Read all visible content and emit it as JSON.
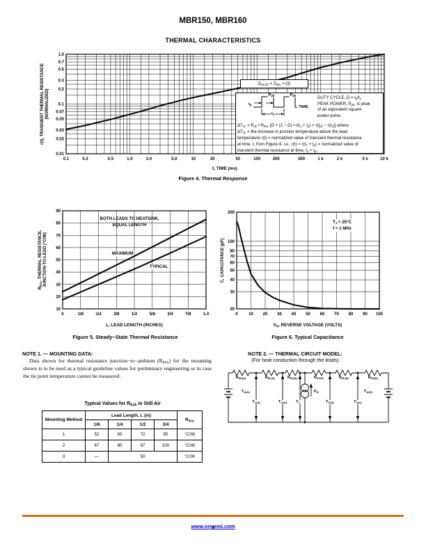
{
  "page": {
    "title": "MBR150, MBR160",
    "subtitle": "THERMAL CHARACTERISTICS",
    "footer": {
      "link": "www.onsemi.com",
      "page_number": "3",
      "rule_color": "#cf6f12"
    }
  },
  "figure4": {
    "caption": "Figure 4. Thermal Response",
    "xlabel": "t, TIME (ms)",
    "ylabel_html": "r(t), TRANSIENT THERMAL RESISTANCE<br>(NORMALIZED)",
    "annotation": {
      "equation_html": "Z<sub>θJL(t)</sub> = Z<sub>θJL</sub> • r(t)",
      "pulse": {
        "ppk_html": "P<sub>pk</sub>",
        "tp_html": "t<sub>p</sub>",
        "t1_html": "t<sub>1</sub>",
        "time": "TIME"
      },
      "duty_html": "DUTY CYCLE, D = t<sub>p</sub>/t<sub>1</sub><br>PEAK POWER, P<sub>pk</sub>, is peak<br>of an equivalent square<br>power pulse.",
      "formula_html": "ΔT<sub>JL</sub> = P<sub>pk</sub> • R<sub>θJL</sub> [D + (1 − D) • r(t<sub>1</sub> + t<sub>p</sub>) + r(t<sub>p</sub>) − r(t<sub>1</sub>)] where<br>ΔT<sub>JL</sub> = the increase in junction temperature above the lead<br>temperature r(t) = normalized value of transient thermal resistance<br>at time, t, from Figure 4, i.e.: r(t) = r(t<sub>1</sub> + t<sub>p</sub>) = normalized value of<br>transient thermal resistance at time, t<sub>1</sub> + t<sub>p</sub>."
    }
  },
  "figure5": {
    "caption": "Figure 5. Steady−State Thermal Resistance",
    "xlabel": "L, LEAD LENGTH (INCHES)",
    "ylabel_html": "R<sub>θJL</sub>, THERMAL RESISTANCE,<br>JUNCTION-TO-LEAD (°C/W)",
    "note_html": "BOTH LEADS TO HEATSINK,<br>EQUAL LENGTH",
    "series_labels": {
      "max": "MAXIMUM",
      "typ": "TYPICAL"
    }
  },
  "figure6": {
    "caption": "Figure 6. Typical Capacitance",
    "xlabel_html": "V<sub>R</sub>, REVERSE VOLTAGE (VOLTS)",
    "ylabel": "C, CAPACITANCE (pF)",
    "conditions_html": "T<sub>J</sub> = 25°C<br>f = 1 MHz"
  },
  "note1": {
    "heading": "NOTE 1. — MOUNTING DATA:",
    "body_html": "Data shown for thermal resistance junction−to−ambient (R<sub>θJA</sub>) for the mounting shown is to be used as a typical guideline values for preliminary engineering or in case the tie point temperature cannot be measured.",
    "table": {
      "title_html": "Typical Values for R<sub>θJA</sub> in Still Air",
      "col1_header": "Mounting Method",
      "span_header": "Lead Length, L (in)",
      "sub_headers": [
        "1/8",
        "1/4",
        "1/2",
        "3/4"
      ],
      "r_header_html": "R<sub>θJA</sub>",
      "rows": [
        {
          "method": "1",
          "values": [
            "52",
            "65",
            "72",
            "85"
          ],
          "unit": "°C/W"
        },
        {
          "method": "2",
          "values": [
            "67",
            "80",
            "87",
            "100"
          ],
          "unit": "°C/W"
        },
        {
          "method": "3",
          "dash": "—",
          "merged": "50",
          "unit": "°C/W"
        }
      ]
    }
  },
  "note2": {
    "heading": "NOTE 2. — THERMAL CIRCUIT MODEL:",
    "subheading": "(For heat conduction through the leads)",
    "resistors_html": [
      "R<sub>θS(A)</sub>",
      "R<sub>θL(A)</sub>",
      "R<sub>θJ(A)</sub>",
      "R<sub>θJ(K)</sub>",
      "R<sub>θL(K)</sub>",
      "R<sub>θS(K)</sub>"
    ],
    "nodes_html": [
      "T<sub>L(A)</sub>",
      "T<sub>C(A)</sub>",
      "T<sub>J</sub>",
      "T<sub>C(K)</sub>",
      "T<sub>L(K)</sub>"
    ],
    "ta_left_html": "T<sub>A(A)</sub>",
    "ta_right_html": "T<sub>A(K)</sub>",
    "pd_html": "P<sub>D</sub>"
  },
  "chart_data": [
    {
      "id": "fig4",
      "type": "line",
      "title": "Figure 4. Thermal Response",
      "xlabel": "t, TIME (ms)",
      "ylabel": "r(t), TRANSIENT THERMAL RESISTANCE (NORMALIZED)",
      "xscale": "log",
      "yscale": "log",
      "xlim": [
        0.1,
        10000
      ],
      "ylim": [
        0.01,
        1.0
      ],
      "grid": "on",
      "legend": "none",
      "xtick_values": [
        0.1,
        0.2,
        0.5,
        1,
        2,
        5,
        10,
        20,
        50,
        100,
        200,
        500,
        1000,
        2000,
        5000,
        10000
      ],
      "xtick_labels": [
        "0.1",
        "0.2",
        "0.5",
        "1.0",
        "2.0",
        "5.0",
        "10",
        "20",
        "50",
        "100",
        "200",
        "500",
        "1 k",
        "2 k",
        "5 k",
        "10 k"
      ],
      "ytick_values": [
        0.01,
        0.02,
        0.03,
        0.05,
        0.07,
        0.1,
        0.2,
        0.3,
        0.5,
        0.7,
        1.0
      ],
      "ytick_labels": [
        "0.01",
        "0.02",
        "0.03",
        "0.05",
        "0.07",
        "0.1",
        "0.2",
        "0.3",
        "0.5",
        "0.7",
        "1.0"
      ],
      "series": [
        {
          "name": "normalized transient thermal resistance",
          "x": [
            0.1,
            0.2,
            0.3,
            0.5,
            0.7,
            1,
            2,
            3,
            5,
            7,
            10,
            20,
            30,
            50,
            100,
            200,
            300,
            500,
            1000,
            2000,
            3000,
            5000,
            7000,
            10000
          ],
          "y": [
            0.031,
            0.037,
            0.042,
            0.049,
            0.055,
            0.062,
            0.079,
            0.093,
            0.109,
            0.122,
            0.135,
            0.162,
            0.18,
            0.207,
            0.248,
            0.3,
            0.34,
            0.417,
            0.543,
            0.672,
            0.75,
            0.86,
            0.93,
            1.0
          ]
        }
      ]
    },
    {
      "id": "fig5",
      "type": "line",
      "title": "Figure 5. Steady-State Thermal Resistance",
      "xlabel": "L, LEAD LENGTH (INCHES)",
      "ylabel": "RθJL, THERMAL RESISTANCE, JUNCTION-TO-LEAD (°C/W)",
      "annotation": "BOTH LEADS TO HEATSINK, EQUAL LENGTH",
      "xscale": "linear",
      "yscale": "linear",
      "xlim": [
        0,
        1
      ],
      "ylim": [
        10,
        90
      ],
      "grid": "on",
      "legend": "inline",
      "xtick_values": [
        0,
        0.125,
        0.25,
        0.375,
        0.5,
        0.625,
        0.75,
        0.875,
        1
      ],
      "xtick_labels": [
        "0",
        "1/8",
        "1/4",
        "3/8",
        "1/2",
        "5/8",
        "3/4",
        "7/8",
        "1.0"
      ],
      "ytick_values": [
        10,
        20,
        30,
        40,
        50,
        60,
        70,
        80,
        90
      ],
      "ytick_labels": [
        "10",
        "20",
        "30",
        "40",
        "50",
        "60",
        "70",
        "80",
        "90"
      ],
      "series": [
        {
          "name": "MAXIMUM",
          "x": [
            0,
            0.25,
            0.5,
            0.75,
            1
          ],
          "y": [
            24,
            38.5,
            53,
            68,
            83
          ]
        },
        {
          "name": "TYPICAL",
          "x": [
            0,
            0.25,
            0.5,
            0.75,
            1
          ],
          "y": [
            17.5,
            30,
            42.5,
            55.5,
            69
          ]
        }
      ]
    },
    {
      "id": "fig6",
      "type": "line",
      "title": "Figure 6. Typical Capacitance",
      "xlabel": "VR, REVERSE VOLTAGE (VOLTS)",
      "ylabel": "C, CAPACITANCE (pF)",
      "conditions": "TJ = 25°C, f = 1 MHz",
      "xscale": "linear",
      "yscale": "log",
      "xlim": [
        0,
        100
      ],
      "ylim": [
        20,
        200
      ],
      "grid": "on",
      "legend": "none",
      "xtick_values": [
        0,
        10,
        20,
        30,
        40,
        50,
        60,
        70,
        80,
        90,
        100
      ],
      "xtick_labels": [
        "0",
        "10",
        "20",
        "30",
        "40",
        "50",
        "60",
        "70",
        "80",
        "90",
        "100"
      ],
      "ytick_values": [
        20,
        30,
        40,
        50,
        60,
        70,
        80,
        100,
        200
      ],
      "ytick_labels": [
        "20",
        "30",
        "40",
        "50",
        "60",
        "70",
        "80",
        "100",
        "200"
      ],
      "ygrid_values": [
        20,
        30,
        40,
        50,
        60,
        70,
        80,
        90,
        100,
        200
      ],
      "series": [
        {
          "name": "typical capacitance",
          "x": [
            0,
            1,
            2,
            3,
            4,
            5,
            7,
            10,
            15,
            20,
            25,
            30,
            40,
            50,
            60,
            80,
            100
          ],
          "y": [
            160,
            148,
            128,
            110,
            96,
            84,
            64,
            46,
            35,
            29.5,
            26.5,
            24.5,
            22,
            20.7,
            20.2,
            20,
            20
          ]
        }
      ]
    }
  ]
}
